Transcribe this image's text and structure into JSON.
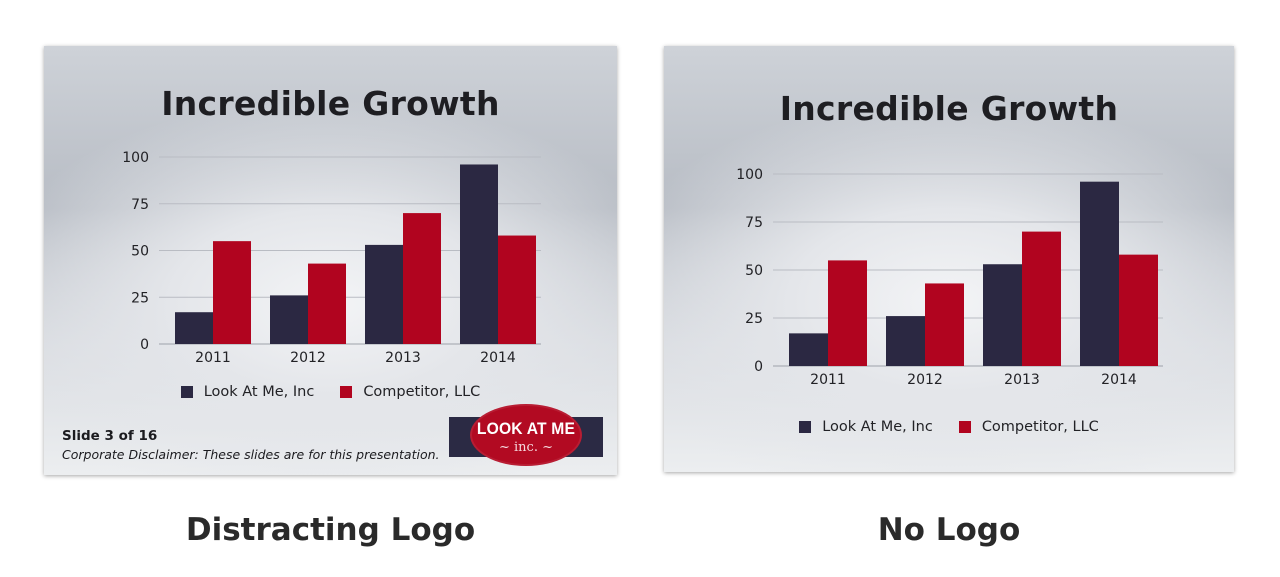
{
  "colors": {
    "series_a": "#2b2842",
    "series_b": "#b1041f",
    "grid": "#b9bcc3",
    "text": "#222226"
  },
  "slides": [
    {
      "title": "Incredible Growth",
      "legend": [
        "Look At Me, Inc",
        "Competitor, LLC"
      ],
      "footer": {
        "slide_number": "Slide 3 of 16",
        "disclaimer": "Corporate Disclaimer: These slides are for this presentation."
      },
      "logo": {
        "main": "LOOK AT ME",
        "sub": "~ inc. ~"
      },
      "caption": "Distracting Logo"
    },
    {
      "title": "Incredible Growth",
      "legend": [
        "Look At Me, Inc",
        "Competitor, LLC"
      ],
      "caption": "No Logo"
    }
  ],
  "chart_data": [
    {
      "type": "bar",
      "title": "Incredible Growth",
      "categories": [
        "2011",
        "2012",
        "2013",
        "2014"
      ],
      "series": [
        {
          "name": "Look At Me, Inc",
          "values": [
            17,
            26,
            53,
            96
          ]
        },
        {
          "name": "Competitor, LLC",
          "values": [
            55,
            43,
            70,
            58
          ]
        }
      ],
      "yticks": [
        0,
        25,
        50,
        75,
        100
      ],
      "ylim": [
        0,
        100
      ],
      "grid": true,
      "legend_position": "bottom"
    },
    {
      "type": "bar",
      "title": "Incredible Growth",
      "categories": [
        "2011",
        "2012",
        "2013",
        "2014"
      ],
      "series": [
        {
          "name": "Look At Me, Inc",
          "values": [
            17,
            26,
            53,
            96
          ]
        },
        {
          "name": "Competitor, LLC",
          "values": [
            55,
            43,
            70,
            58
          ]
        }
      ],
      "yticks": [
        0,
        25,
        50,
        75,
        100
      ],
      "ylim": [
        0,
        100
      ],
      "grid": true,
      "legend_position": "bottom"
    }
  ]
}
